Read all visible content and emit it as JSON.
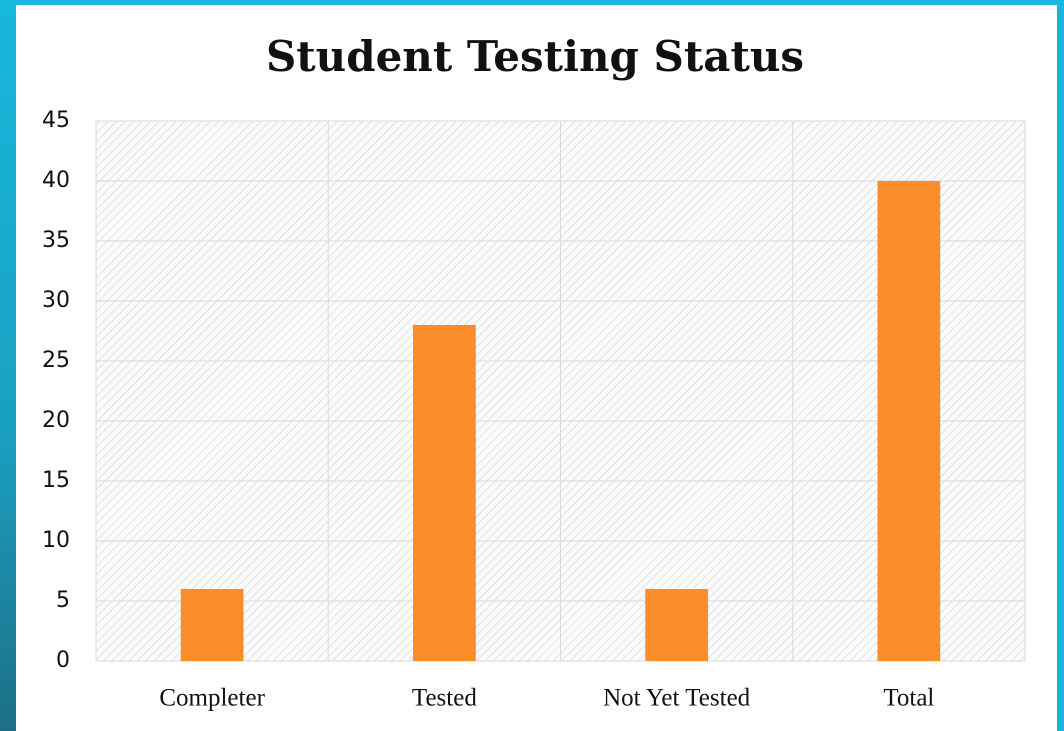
{
  "chart_data": {
    "type": "bar",
    "title": "Student Testing Status",
    "categories": [
      "Completer",
      "Tested",
      "Not Yet Tested",
      "Total"
    ],
    "values": [
      6,
      28,
      6,
      40
    ],
    "color": "#fa8c2a",
    "ylim": [
      0,
      45
    ],
    "yticks": [
      0,
      5,
      10,
      15,
      20,
      25,
      30,
      35,
      40,
      45
    ],
    "grid": true
  }
}
